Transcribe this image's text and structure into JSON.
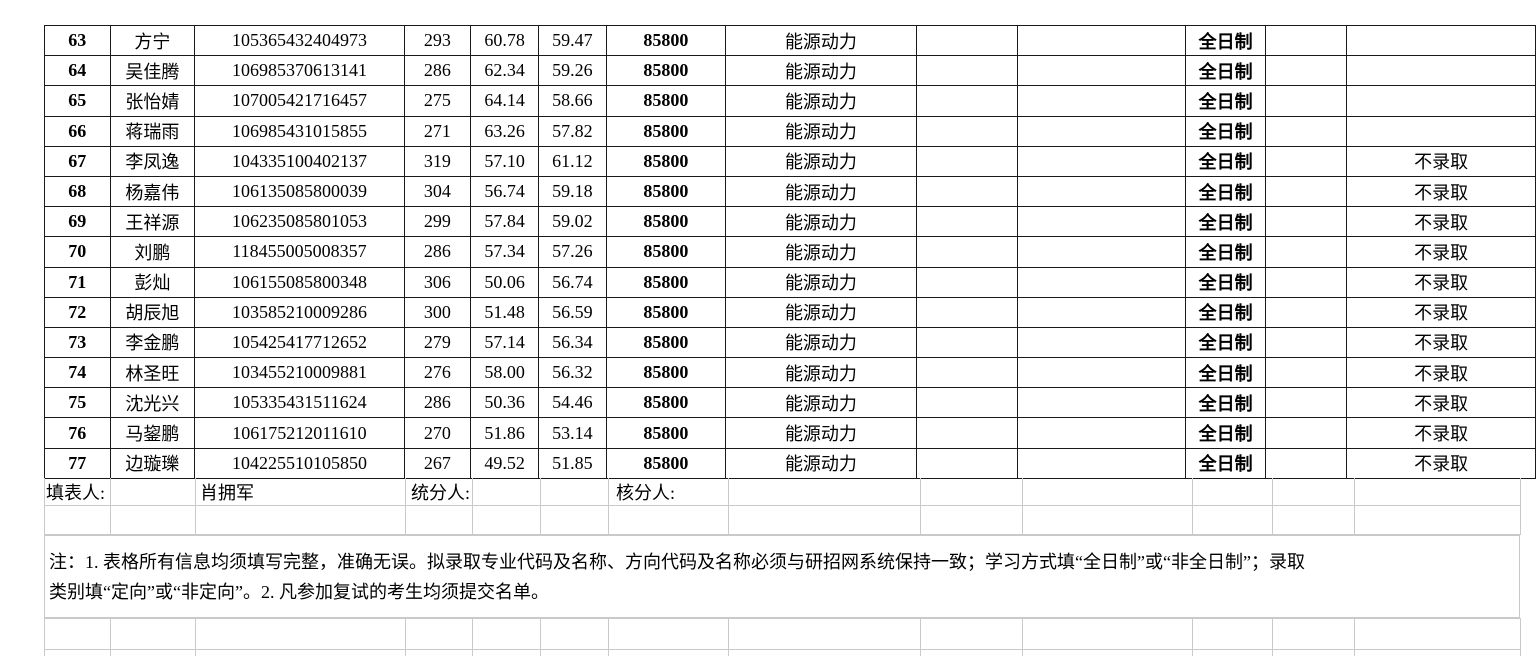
{
  "sheet": {
    "rows": [
      [
        "63",
        "方宁",
        "105365432404973",
        "293",
        "60.78",
        "59.47",
        "85800",
        "能源动力",
        "",
        "",
        "全日制",
        "",
        ""
      ],
      [
        "64",
        "吴佳腾",
        "106985370613141",
        "286",
        "62.34",
        "59.26",
        "85800",
        "能源动力",
        "",
        "",
        "全日制",
        "",
        ""
      ],
      [
        "65",
        "张怡婧",
        "107005421716457",
        "275",
        "64.14",
        "58.66",
        "85800",
        "能源动力",
        "",
        "",
        "全日制",
        "",
        ""
      ],
      [
        "66",
        "蒋瑞雨",
        "106985431015855",
        "271",
        "63.26",
        "57.82",
        "85800",
        "能源动力",
        "",
        "",
        "全日制",
        "",
        ""
      ],
      [
        "67",
        "李凤逸",
        "104335100402137",
        "319",
        "57.10",
        "61.12",
        "85800",
        "能源动力",
        "",
        "",
        "全日制",
        "",
        "不录取"
      ],
      [
        "68",
        "杨嘉伟",
        "106135085800039",
        "304",
        "56.74",
        "59.18",
        "85800",
        "能源动力",
        "",
        "",
        "全日制",
        "",
        "不录取"
      ],
      [
        "69",
        "王祥源",
        "106235085801053",
        "299",
        "57.84",
        "59.02",
        "85800",
        "能源动力",
        "",
        "",
        "全日制",
        "",
        "不录取"
      ],
      [
        "70",
        "刘鹏",
        "118455005008357",
        "286",
        "57.34",
        "57.26",
        "85800",
        "能源动力",
        "",
        "",
        "全日制",
        "",
        "不录取"
      ],
      [
        "71",
        "彭灿",
        "106155085800348",
        "306",
        "50.06",
        "56.74",
        "85800",
        "能源动力",
        "",
        "",
        "全日制",
        "",
        "不录取"
      ],
      [
        "72",
        "胡辰旭",
        "103585210009286",
        "300",
        "51.48",
        "56.59",
        "85800",
        "能源动力",
        "",
        "",
        "全日制",
        "",
        "不录取"
      ],
      [
        "73",
        "李金鹏",
        "105425417712652",
        "279",
        "57.14",
        "56.34",
        "85800",
        "能源动力",
        "",
        "",
        "全日制",
        "",
        "不录取"
      ],
      [
        "74",
        "林圣旺",
        "103455210009881",
        "276",
        "58.00",
        "56.32",
        "85800",
        "能源动力",
        "",
        "",
        "全日制",
        "",
        "不录取"
      ],
      [
        "75",
        "沈光兴",
        "105335431511624",
        "286",
        "50.36",
        "54.46",
        "85800",
        "能源动力",
        "",
        "",
        "全日制",
        "",
        "不录取"
      ],
      [
        "76",
        "马鋆鹏",
        "106175212011610",
        "270",
        "51.86",
        "53.14",
        "85800",
        "能源动力",
        "",
        "",
        "全日制",
        "",
        "不录取"
      ],
      [
        "77",
        "边璇瓅",
        "104225510105850",
        "267",
        "49.52",
        "51.85",
        "85800",
        "能源动力",
        "",
        "",
        "全日制",
        "",
        "不录取"
      ]
    ],
    "footer": {
      "filled_by_label": "填表人:",
      "filled_by_name": "肖拥军",
      "tallied_by_label": "统分人:",
      "checked_by_label": "核分人:"
    },
    "note_lines": [
      "注：1. 表格所有信息均须填写完整，准确无误。拟录取专业代码及名称、方向代码及名称必须与研招网系统保持一致；学习方式填“全日制”或“非全日制”；录取",
      "类别填“定向”或“非定向”。2. 凡参加复试的考生均须提交名单。"
    ]
  }
}
